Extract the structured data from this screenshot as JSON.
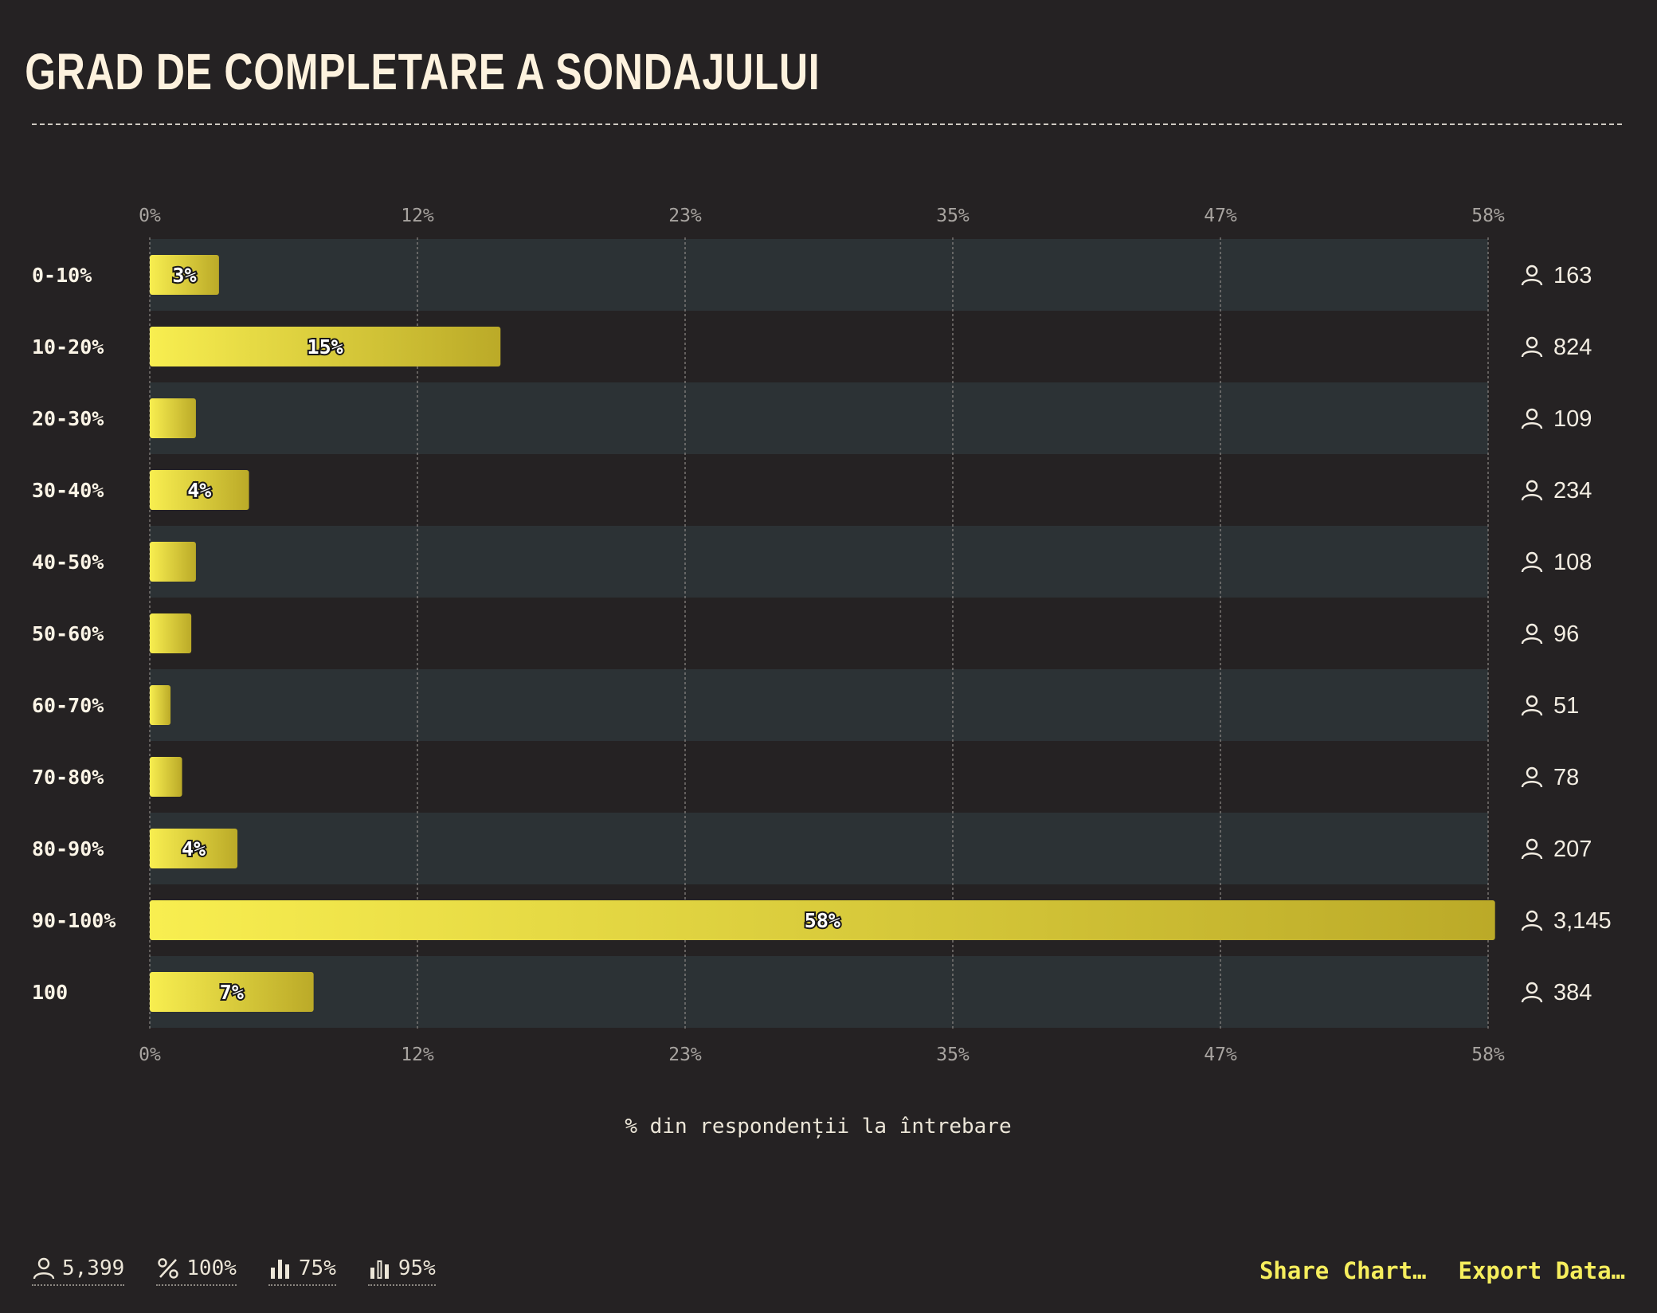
{
  "title": "GRAD DE COMPLETARE A SONDAJULUI",
  "colors": {
    "background": "#252223",
    "band": "#2c3235",
    "bar_start": "#f8ee50",
    "bar_end": "#bbaa28",
    "accent": "#f6ee5d"
  },
  "chart_data": {
    "type": "bar",
    "orientation": "horizontal",
    "title": "GRAD DE COMPLETARE A SONDAJULUI",
    "xlabel": "% din respondenții la întrebare",
    "ylabel": "",
    "xlim": [
      0,
      58
    ],
    "x_ticks": [
      "0%",
      "12%",
      "23%",
      "35%",
      "47%",
      "58%"
    ],
    "categories": [
      "0-10%",
      "10-20%",
      "20-30%",
      "30-40%",
      "40-50%",
      "50-60%",
      "60-70%",
      "70-80%",
      "80-90%",
      "90-100%",
      "100"
    ],
    "values": [
      3.0,
      15.2,
      2.0,
      4.3,
      2.0,
      1.8,
      0.9,
      1.4,
      3.8,
      58.3,
      7.1
    ],
    "data_labels": [
      "3%",
      "15%",
      "",
      "4%",
      "",
      "",
      "",
      "",
      "4%",
      "58%",
      "7%"
    ],
    "counts": [
      "163",
      "824",
      "109",
      "234",
      "108",
      "96",
      "51",
      "78",
      "207",
      "3,145",
      "384"
    ],
    "count_icon": "person-icon",
    "grid": true,
    "legend": "none"
  },
  "footer": {
    "stats": [
      {
        "icon": "person-icon",
        "value": "5,399"
      },
      {
        "icon": "percent-icon",
        "value": "100%"
      },
      {
        "icon": "bar-chart-icon",
        "value": "75%"
      },
      {
        "icon": "bar-chart-outline-icon",
        "value": "95%"
      }
    ],
    "share_label": "Share Chart…",
    "export_label": "Export Data…"
  }
}
